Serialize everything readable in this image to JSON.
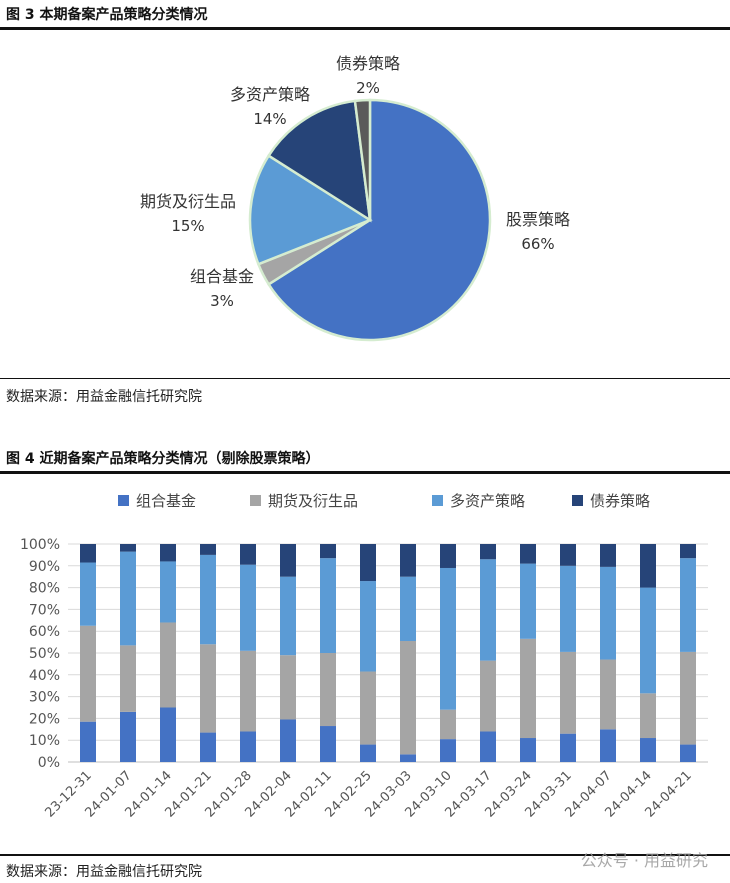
{
  "figure3": {
    "title": "图 3  本期备案产品策略分类情况",
    "source": "数据来源：用益金融信托研究院",
    "chart_data": {
      "type": "pie",
      "slices": [
        {
          "name": "股票策略",
          "value": 66,
          "label": "66%",
          "color": "#4472C4"
        },
        {
          "name": "组合基金",
          "value": 3,
          "label": "3%",
          "color": "#A5A5A5"
        },
        {
          "name": "期货及衍生品",
          "value": 15,
          "label": "15%",
          "color": "#5B9BD5"
        },
        {
          "name": "多资产策略",
          "value": 14,
          "label": "14%",
          "color": "#264478"
        },
        {
          "name": "债券策略",
          "value": 2,
          "label": "2%",
          "color": "#5A5A5A"
        }
      ]
    }
  },
  "figure4": {
    "title": "图 4  近期备案产品策略分类情况（剔除股票策略）",
    "source": "数据来源：用益金融信托研究院",
    "chart_data": {
      "type": "bar",
      "stacked": true,
      "legend_position": "top",
      "ylim": [
        0,
        100
      ],
      "yticks": [
        "0%",
        "10%",
        "20%",
        "30%",
        "40%",
        "50%",
        "60%",
        "70%",
        "80%",
        "90%",
        "100%"
      ],
      "categories": [
        "23-12-31",
        "24-01-07",
        "24-01-14",
        "24-01-21",
        "24-01-28",
        "24-02-04",
        "24-02-11",
        "24-02-25",
        "24-03-03",
        "24-03-10",
        "24-03-17",
        "24-03-24",
        "24-03-31",
        "24-04-07",
        "24-04-14",
        "24-04-21"
      ],
      "series": [
        {
          "name": "组合基金",
          "color": "#4472C4",
          "values": [
            18.5,
            23,
            25,
            13.5,
            14,
            19.5,
            16.5,
            8,
            3.5,
            10.5,
            14,
            11,
            13,
            15,
            11,
            8
          ]
        },
        {
          "name": "期货及衍生品",
          "color": "#A5A5A5",
          "values": [
            44,
            30.5,
            39,
            40.5,
            37,
            29.5,
            33.5,
            33.5,
            52,
            13.5,
            32.5,
            45.5,
            37.5,
            32,
            20.5,
            42.5
          ]
        },
        {
          "name": "多资产策略",
          "color": "#5B9BD5",
          "values": [
            29,
            43,
            28,
            41,
            39.5,
            36,
            43.5,
            41.5,
            29.5,
            65,
            46.5,
            34.5,
            39.5,
            42.5,
            48.5,
            43
          ]
        },
        {
          "name": "债券策略",
          "color": "#264478",
          "values": [
            8.5,
            3.5,
            8,
            5,
            9.5,
            15,
            6.5,
            17,
            15,
            11,
            7,
            9,
            10,
            10.5,
            20,
            6.5
          ]
        }
      ]
    }
  },
  "watermark": "公众号 · 用益研究"
}
